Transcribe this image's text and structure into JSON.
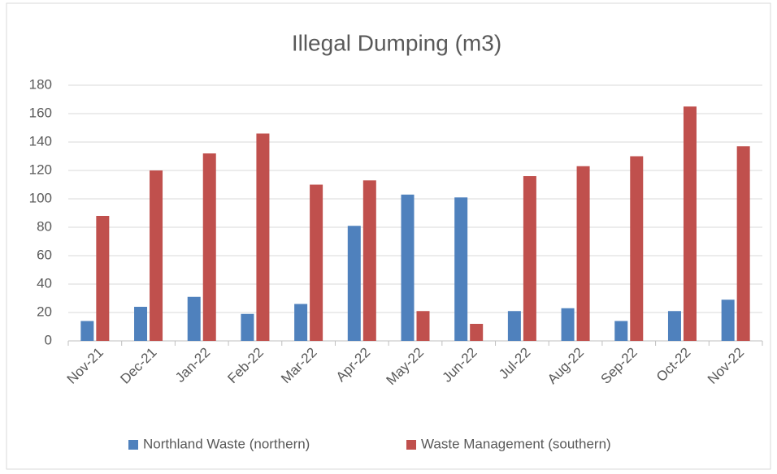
{
  "chart_data": {
    "type": "bar",
    "title": "Illegal Dumping (m3)",
    "categories": [
      "Nov-21",
      "Dec-21",
      "Jan-22",
      "Feb-22",
      "Mar-22",
      "Apr-22",
      "May-22",
      "Jun-22",
      "Jul-22",
      "Aug-22",
      "Sep-22",
      "Oct-22",
      "Nov-22"
    ],
    "series": [
      {
        "name": "Northland Waste (northern)",
        "color": "#4f81bd",
        "values": [
          14,
          24,
          31,
          19,
          26,
          81,
          103,
          101,
          21,
          23,
          14,
          21,
          29
        ]
      },
      {
        "name": "Waste Management (southern)",
        "color": "#c0504d",
        "values": [
          88,
          120,
          132,
          146,
          110,
          113,
          21,
          12,
          116,
          123,
          130,
          165,
          137
        ]
      }
    ],
    "ylim": [
      0,
      180
    ],
    "yticks": [
      0,
      20,
      40,
      60,
      80,
      100,
      120,
      140,
      160,
      180
    ],
    "grid": true,
    "legend": "bottom"
  }
}
